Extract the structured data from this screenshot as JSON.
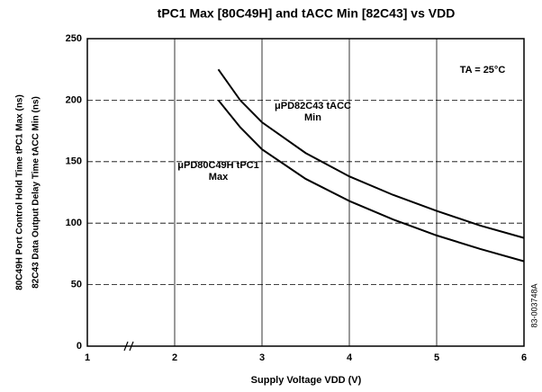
{
  "chart_data": {
    "type": "line",
    "title": "tPC1 Max [80C49H] and tACC Min [82C43] vs VDD",
    "xlabel": "Supply Voltage VDD (V)",
    "ylabel": [
      "80C49H Port Control Hold Time tPC1 Max (ns)",
      "82C43 Data Output Delay Time tACC Min (ns)"
    ],
    "annotations": [
      "TA = 25°C",
      "83-003748A"
    ],
    "x": [
      2.5,
      2.75,
      3,
      3.5,
      4,
      4.5,
      5,
      5.5,
      6
    ],
    "series": [
      {
        "name": "μPD82C43 tACC Min",
        "color": "#000000",
        "values": [
          225,
          200,
          182,
          157,
          138,
          123,
          110,
          98,
          88
        ]
      },
      {
        "name": "μPD80C49H tPC1 Max",
        "color": "#000000",
        "values": [
          200,
          178,
          160,
          136,
          118,
          103,
          90,
          79,
          69
        ]
      }
    ],
    "xlim": [
      1,
      6
    ],
    "xticks": [
      1,
      2,
      3,
      4,
      5,
      6
    ],
    "ylim": [
      0,
      250
    ],
    "yticks": [
      0,
      50,
      100,
      150,
      200,
      250
    ],
    "grid": true
  }
}
